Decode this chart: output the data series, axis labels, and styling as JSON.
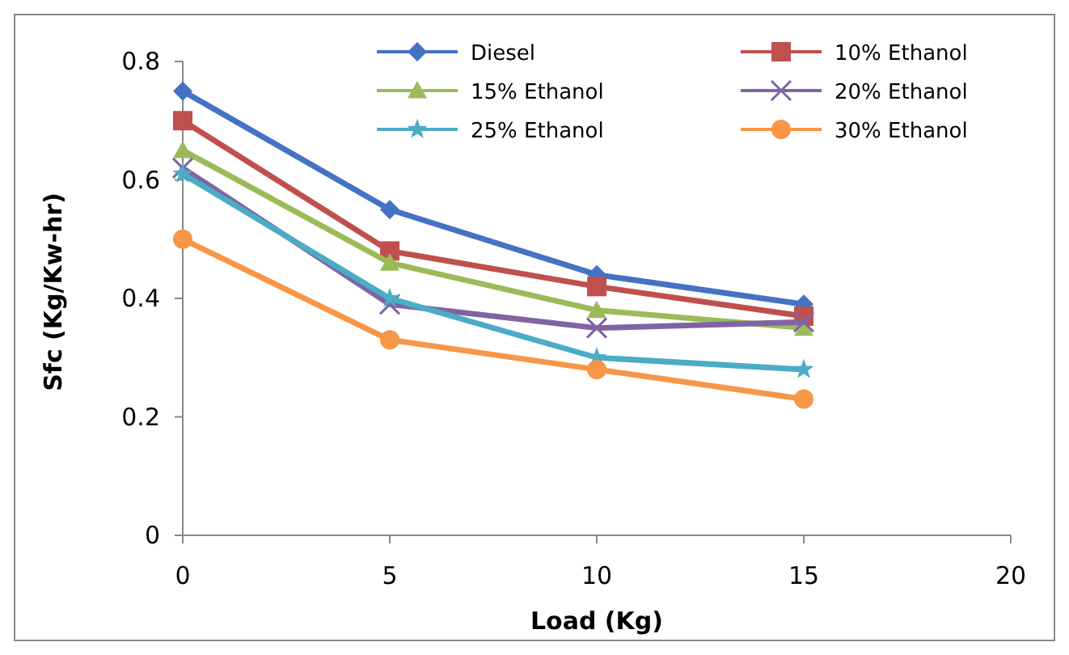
{
  "chart_data": {
    "type": "line",
    "xlabel": "Load (Kg)",
    "ylabel": "Sfc (Kg/Kw-hr)",
    "x": [
      0,
      5,
      10,
      15
    ],
    "xlim": [
      0,
      20
    ],
    "xticks": [
      0,
      5,
      10,
      15,
      20
    ],
    "ylim": [
      0,
      0.8
    ],
    "yticks": [
      0,
      0.2,
      0.4,
      0.6,
      0.8
    ],
    "grid": false,
    "legend": "top",
    "series": [
      {
        "name": "Diesel",
        "color": "#4472c4",
        "marker": "diamond",
        "values": [
          0.75,
          0.55,
          0.44,
          0.39
        ]
      },
      {
        "name": "10% Ethanol",
        "color": "#c0504d",
        "marker": "square",
        "values": [
          0.7,
          0.48,
          0.42,
          0.37
        ]
      },
      {
        "name": "15% Ethanol",
        "color": "#9bbb59",
        "marker": "triangle",
        "values": [
          0.65,
          0.46,
          0.38,
          0.35
        ]
      },
      {
        "name": "20% Ethanol",
        "color": "#8064a2",
        "marker": "cross",
        "values": [
          0.62,
          0.39,
          0.35,
          0.36
        ]
      },
      {
        "name": "25% Ethanol",
        "color": "#4bacc6",
        "marker": "star",
        "values": [
          0.61,
          0.4,
          0.3,
          0.28
        ]
      },
      {
        "name": "30% Ethanol",
        "color": "#f79646",
        "marker": "circle",
        "values": [
          0.5,
          0.33,
          0.28,
          0.23
        ]
      }
    ]
  }
}
